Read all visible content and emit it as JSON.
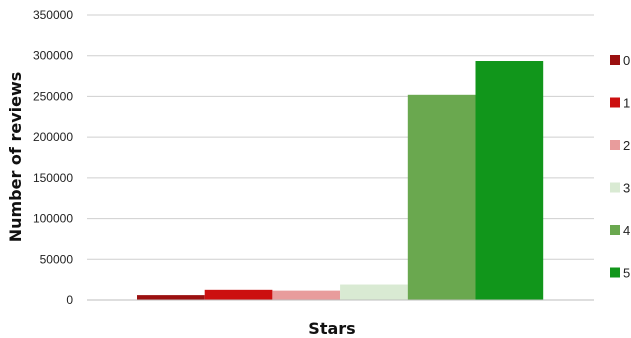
{
  "chart_data": {
    "type": "bar",
    "title": "",
    "xlabel": "Stars",
    "ylabel": "Number of reviews",
    "ylim": [
      0,
      350000
    ],
    "yticks": [
      0,
      50000,
      100000,
      150000,
      200000,
      250000,
      300000,
      350000
    ],
    "ytick_labels": [
      "0",
      "50000",
      "100000",
      "150000",
      "200000",
      "250000",
      "300000",
      "350000"
    ],
    "grid": true,
    "legend_position": "right",
    "series": [
      {
        "name": "0",
        "value": 6000,
        "color": "#9b1010"
      },
      {
        "name": "1",
        "value": 12500,
        "color": "#cc0f0f"
      },
      {
        "name": "2",
        "value": 11500,
        "color": "#e89c9c"
      },
      {
        "name": "3",
        "value": 19000,
        "color": "#d9ead3"
      },
      {
        "name": "4",
        "value": 252000,
        "color": "#6aa84f"
      },
      {
        "name": "5",
        "value": 293500,
        "color": "#11961b"
      }
    ]
  }
}
